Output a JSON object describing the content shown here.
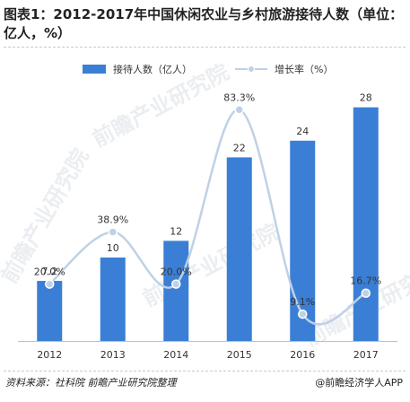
{
  "header": {
    "title": "图表1：2012-2017年中国休闲农业与乡村旅游接待人数（单位：亿人，%）"
  },
  "footer": {
    "source": "资料来源：社科院 前瞻产业研究院整理",
    "brand": "@前瞻经济学人APP"
  },
  "watermark": {
    "text": "前瞻产业研究院"
  },
  "colors": {
    "bar": "#3a7fd5",
    "line": "#bfd1e6",
    "marker": "#bfd1e6",
    "marker_stroke": "#ffffff"
  },
  "chart_data": {
    "type": "bar",
    "categories": [
      "2012",
      "2013",
      "2014",
      "2015",
      "2016",
      "2017"
    ],
    "series": [
      {
        "name": "接待人数（亿人）",
        "type": "bar",
        "values": [
          7.2,
          10,
          12,
          22,
          24,
          28
        ],
        "labels": [
          "7.2",
          "10",
          "12",
          "22",
          "24",
          "28"
        ]
      },
      {
        "name": "增长率（%）",
        "type": "line",
        "smooth": true,
        "values": [
          20.0,
          38.9,
          20.0,
          83.3,
          9.1,
          16.7
        ],
        "labels": [
          "20.0%",
          "38.9%",
          "20.0%",
          "83.3%",
          "9.1%",
          "16.7%"
        ]
      }
    ],
    "title": "",
    "xlabel": "",
    "ylabel": "",
    "legend": "top",
    "grid": false
  }
}
